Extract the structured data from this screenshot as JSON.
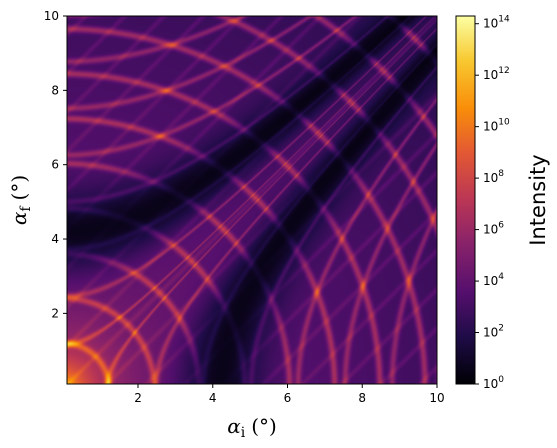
{
  "chart_data": {
    "type": "heatmap",
    "title": "",
    "xlabel": {
      "symbol": "α",
      "subscript": "i",
      "unit": "(°)"
    },
    "ylabel": {
      "symbol": "α",
      "subscript": "f",
      "unit": "(°)"
    },
    "xlim": [
      0.1,
      10
    ],
    "ylim": [
      0.1,
      10
    ],
    "x_ticks": [
      2,
      4,
      6,
      8,
      10
    ],
    "y_ticks": [
      2,
      4,
      6,
      8,
      10
    ],
    "grid": false,
    "colormap": "inferno",
    "colorbar": {
      "label": "Intensity",
      "scale": "log",
      "range_exponents": [
        0,
        14.3
      ],
      "tick_exponents": [
        0,
        2,
        4,
        6,
        8,
        10,
        12,
        14
      ],
      "tick_base": "10"
    }
  }
}
